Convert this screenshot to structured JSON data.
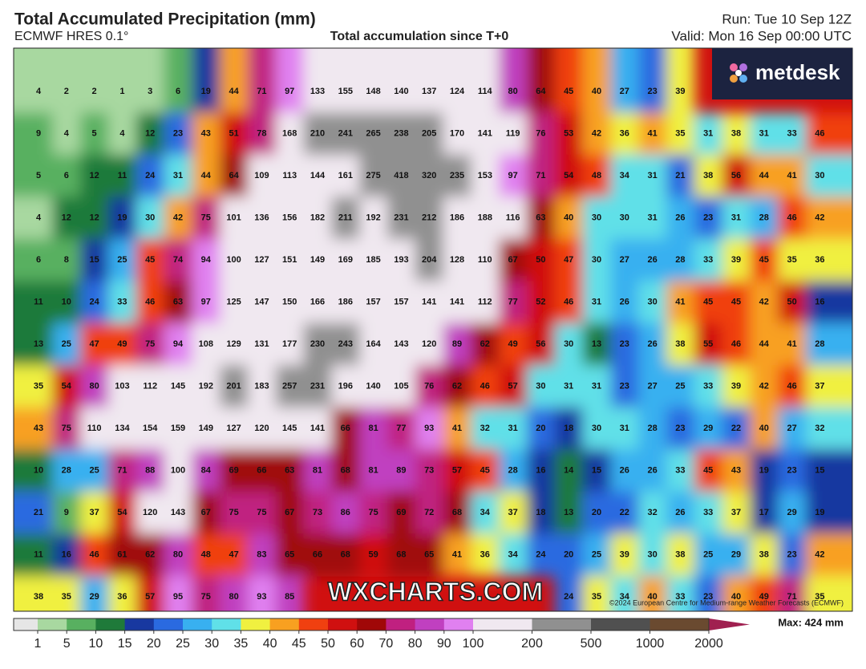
{
  "header": {
    "title": "Total Accumulated Precipitation (mm)",
    "model": "ECMWF HRES 0.1°",
    "subtitle": "Total accumulation since T+0",
    "run": "Run: Tue 10 Sep 12Z",
    "valid": "Valid: Mon 16 Sep 00:00 UTC"
  },
  "logo": "metdesk",
  "watermark": "WXCHARTS.COM",
  "copyright": "©2024 European Centre for Medium-range Weather Forecasts (ECMWF)",
  "map": {
    "rows": [
      [
        4,
        2,
        2,
        1,
        3,
        6,
        19,
        44,
        71,
        97,
        133,
        155,
        148,
        140,
        137,
        124,
        114,
        80,
        64,
        45,
        40,
        27,
        23,
        39,
        null,
        null,
        null,
        null,
        null
      ],
      [
        9,
        4,
        5,
        4,
        12,
        23,
        43,
        51,
        78,
        168,
        210,
        241,
        265,
        238,
        205,
        170,
        141,
        119,
        76,
        53,
        42,
        36,
        41,
        35,
        31,
        38,
        31,
        33,
        46
      ],
      [
        5,
        6,
        12,
        11,
        24,
        31,
        44,
        64,
        109,
        113,
        144,
        161,
        275,
        418,
        320,
        235,
        153,
        97,
        71,
        54,
        48,
        34,
        31,
        21,
        38,
        56,
        44,
        41,
        30
      ],
      [
        4,
        12,
        12,
        19,
        30,
        42,
        75,
        101,
        136,
        156,
        182,
        211,
        192,
        231,
        212,
        186,
        188,
        116,
        63,
        40,
        30,
        30,
        31,
        26,
        23,
        31,
        28,
        46,
        42
      ],
      [
        6,
        8,
        15,
        25,
        45,
        74,
        94,
        100,
        127,
        151,
        149,
        169,
        185,
        193,
        204,
        128,
        110,
        67,
        50,
        47,
        30,
        27,
        26,
        28,
        33,
        39,
        45,
        35,
        36
      ],
      [
        11,
        10,
        24,
        33,
        46,
        63,
        97,
        125,
        147,
        150,
        166,
        186,
        157,
        157,
        141,
        141,
        112,
        77,
        52,
        46,
        31,
        26,
        30,
        41,
        45,
        45,
        42,
        50,
        16
      ],
      [
        13,
        25,
        47,
        49,
        75,
        94,
        108,
        129,
        131,
        177,
        230,
        243,
        164,
        143,
        120,
        89,
        62,
        49,
        56,
        30,
        13,
        23,
        26,
        38,
        55,
        46,
        44,
        41,
        28
      ],
      [
        35,
        54,
        80,
        103,
        112,
        145,
        192,
        201,
        183,
        257,
        231,
        196,
        140,
        105,
        76,
        62,
        46,
        57,
        30,
        31,
        31,
        23,
        27,
        25,
        33,
        39,
        42,
        46,
        37
      ],
      [
        43,
        75,
        110,
        134,
        154,
        159,
        149,
        127,
        120,
        145,
        141,
        66,
        81,
        77,
        93,
        41,
        32,
        31,
        20,
        18,
        30,
        31,
        28,
        23,
        29,
        22,
        40,
        27,
        32
      ],
      [
        10,
        28,
        25,
        71,
        88,
        100,
        84,
        69,
        66,
        63,
        81,
        68,
        81,
        89,
        73,
        57,
        45,
        28,
        16,
        14,
        15,
        26,
        26,
        33,
        45,
        43,
        19,
        23,
        15
      ],
      [
        21,
        9,
        37,
        54,
        120,
        143,
        67,
        75,
        75,
        67,
        73,
        86,
        75,
        69,
        72,
        68,
        34,
        37,
        18,
        13,
        20,
        22,
        32,
        26,
        33,
        37,
        17,
        29,
        19
      ],
      [
        11,
        16,
        46,
        61,
        62,
        80,
        48,
        47,
        83,
        65,
        66,
        68,
        59,
        68,
        65,
        41,
        36,
        34,
        24,
        20,
        25,
        39,
        30,
        38,
        25,
        29,
        38,
        23,
        42
      ],
      [
        38,
        35,
        29,
        36,
        57,
        95,
        75,
        80,
        93,
        85,
        null,
        null,
        null,
        null,
        null,
        null,
        null,
        null,
        null,
        24,
        35,
        34,
        40,
        33,
        23,
        40,
        49,
        71,
        35
      ]
    ]
  },
  "legend": {
    "levels": [
      1,
      5,
      10,
      15,
      20,
      25,
      30,
      35,
      40,
      45,
      50,
      60,
      70,
      80,
      90,
      100,
      200,
      500,
      1000,
      2000
    ],
    "colors": [
      "#e6e6e6",
      "#a8d8a0",
      "#58b060",
      "#1f7a3a",
      "#1838a0",
      "#2a6ae0",
      "#38b0f0",
      "#60e0e8",
      "#f0f040",
      "#f8a020",
      "#f04010",
      "#d01010",
      "#a00808",
      "#c02080",
      "#c040c0",
      "#e080f0",
      "#f0e8f0",
      "#909090",
      "#505050",
      "#6a4a30",
      "#a02050"
    ],
    "max_label": "Max: 424 mm"
  }
}
